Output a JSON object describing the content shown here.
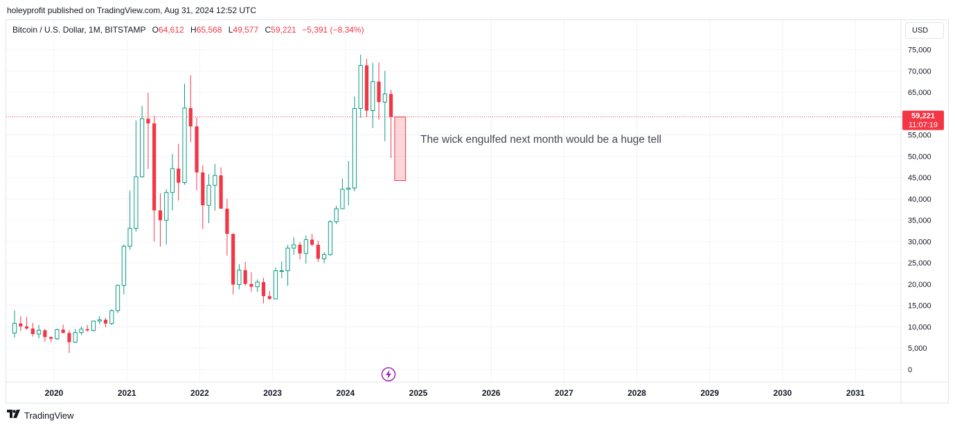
{
  "header": {
    "published_line": "holeyprofit published on TradingView.com, Aug 31, 2024 12:52 UTC"
  },
  "legend": {
    "symbol": "Bitcoin / U.S. Dollar, 1M, BITSTAMP",
    "o_label": "O",
    "o_value": "64,612",
    "h_label": "H",
    "h_value": "65,568",
    "l_label": "L",
    "l_value": "49,577",
    "c_label": "C",
    "c_value": "59,221",
    "change": "−5,391 (−8.34%)"
  },
  "currency_button": "USD",
  "annotation": "The wick engulfed next month would be a huge tell",
  "price_label": {
    "price": "59,221",
    "countdown": "11:07:19"
  },
  "footer": {
    "brand": "TradingView"
  },
  "icons": {
    "lightning": "lightning-icon",
    "logo": "tradingview-logo-icon"
  },
  "colors": {
    "up": "#089981",
    "down": "#f23645",
    "grid": "#f0f3fa",
    "text": "#131722"
  },
  "chart_data": {
    "type": "candlestick",
    "interval": "1M",
    "exchange": "BITSTAMP",
    "ylim": [
      0,
      78000
    ],
    "y_ticks": [
      0,
      5000,
      10000,
      15000,
      20000,
      25000,
      30000,
      35000,
      40000,
      45000,
      50000,
      55000,
      60000,
      65000,
      70000,
      75000
    ],
    "y_tick_labels": [
      "0",
      "5,000",
      "10,000",
      "15,000",
      "20,000",
      "25,000",
      "30,000",
      "35,000",
      "40,000",
      "45,000",
      "50,000",
      "55,000",
      "60,000",
      "65,000",
      "70,000",
      "75,000"
    ],
    "x_ticks": [
      "2020",
      "2021",
      "2022",
      "2023",
      "2024",
      "2025",
      "2026",
      "2027",
      "2028",
      "2029",
      "2030",
      "2031"
    ],
    "grid": true,
    "last_price": 59221,
    "candles": [
      [
        "2019-06",
        8550,
        13900,
        7500,
        10800
      ],
      [
        "2019-07",
        10800,
        12500,
        9000,
        10100
      ],
      [
        "2019-08",
        10100,
        12300,
        9300,
        9600
      ],
      [
        "2019-09",
        9600,
        10900,
        7700,
        8300
      ],
      [
        "2019-10",
        8300,
        10400,
        7300,
        9200
      ],
      [
        "2019-11",
        9200,
        9500,
        6500,
        7600
      ],
      [
        "2019-12",
        7600,
        7700,
        6400,
        7200
      ],
      [
        "2020-01",
        7200,
        9600,
        6900,
        9350
      ],
      [
        "2020-02",
        9350,
        10500,
        8500,
        8550
      ],
      [
        "2020-03",
        8550,
        9200,
        3850,
        6400
      ],
      [
        "2020-04",
        6400,
        9500,
        6200,
        8650
      ],
      [
        "2020-05",
        8650,
        10100,
        8100,
        9450
      ],
      [
        "2020-06",
        9450,
        10400,
        8900,
        9150
      ],
      [
        "2020-07",
        9150,
        11450,
        8900,
        11350
      ],
      [
        "2020-08",
        11350,
        12500,
        10600,
        11650
      ],
      [
        "2020-09",
        11650,
        12100,
        9900,
        10780
      ],
      [
        "2020-10",
        10780,
        14100,
        10400,
        13800
      ],
      [
        "2020-11",
        13800,
        19900,
        13200,
        19700
      ],
      [
        "2020-12",
        19700,
        29300,
        17600,
        28900
      ],
      [
        "2021-01",
        28900,
        41900,
        28100,
        33100
      ],
      [
        "2021-02",
        33100,
        58400,
        32300,
        45200
      ],
      [
        "2021-03",
        45200,
        61800,
        45000,
        58800
      ],
      [
        "2021-04",
        58800,
        64900,
        47000,
        57700
      ],
      [
        "2021-05",
        57700,
        59500,
        30000,
        37300
      ],
      [
        "2021-06",
        37300,
        41300,
        28800,
        35000
      ],
      [
        "2021-07",
        35000,
        42300,
        29300,
        41500
      ],
      [
        "2021-08",
        41500,
        50500,
        37300,
        47100
      ],
      [
        "2021-09",
        47100,
        52900,
        39600,
        43800
      ],
      [
        "2021-10",
        43800,
        67000,
        43300,
        61300
      ],
      [
        "2021-11",
        61300,
        69000,
        53300,
        57000
      ],
      [
        "2021-12",
        57000,
        59100,
        42000,
        46200
      ],
      [
        "2022-01",
        46200,
        47900,
        32900,
        38500
      ],
      [
        "2022-02",
        38500,
        45800,
        34300,
        43200
      ],
      [
        "2022-03",
        43200,
        48200,
        37200,
        45500
      ],
      [
        "2022-04",
        45500,
        47400,
        37700,
        37700
      ],
      [
        "2022-05",
        37700,
        40000,
        26700,
        31800
      ],
      [
        "2022-06",
        31800,
        31900,
        17600,
        19900
      ],
      [
        "2022-07",
        19900,
        24700,
        18800,
        23300
      ],
      [
        "2022-08",
        23300,
        25200,
        19600,
        20050
      ],
      [
        "2022-09",
        20050,
        22800,
        18200,
        19400
      ],
      [
        "2022-10",
        19400,
        21100,
        18200,
        20500
      ],
      [
        "2022-11",
        20500,
        21500,
        15500,
        17200
      ],
      [
        "2022-12",
        17200,
        18400,
        16300,
        16550
      ],
      [
        "2023-01",
        16550,
        23900,
        16500,
        23150
      ],
      [
        "2023-02",
        23150,
        25300,
        21400,
        23150
      ],
      [
        "2023-03",
        23150,
        29200,
        19600,
        28450
      ],
      [
        "2023-04",
        28450,
        31000,
        26900,
        29250
      ],
      [
        "2023-05",
        29250,
        29900,
        25800,
        27200
      ],
      [
        "2023-06",
        27200,
        31400,
        24800,
        30450
      ],
      [
        "2023-07",
        30450,
        31800,
        28900,
        29250
      ],
      [
        "2023-08",
        29250,
        30200,
        25200,
        25950
      ],
      [
        "2023-09",
        25950,
        27500,
        24900,
        26950
      ],
      [
        "2023-10",
        26950,
        35000,
        26600,
        34650
      ],
      [
        "2023-11",
        34650,
        38400,
        34100,
        37700
      ],
      [
        "2023-12",
        37700,
        44700,
        37600,
        42250
      ],
      [
        "2024-01",
        42250,
        48900,
        38500,
        42550
      ],
      [
        "2024-02",
        42550,
        64000,
        41800,
        61200
      ],
      [
        "2024-03",
        61200,
        73800,
        59000,
        71300
      ],
      [
        "2024-04",
        71300,
        72800,
        59200,
        60700
      ],
      [
        "2024-05",
        60700,
        71900,
        56600,
        67500
      ],
      [
        "2024-06",
        67500,
        72000,
        58600,
        62700
      ],
      [
        "2024-07",
        62700,
        70000,
        53500,
        64612
      ],
      [
        "2024-08",
        64612,
        65568,
        49577,
        59221
      ]
    ],
    "annotation_box": {
      "from": "2024-09",
      "to": "2024-10",
      "top": 59221,
      "bottom": 44300
    }
  }
}
